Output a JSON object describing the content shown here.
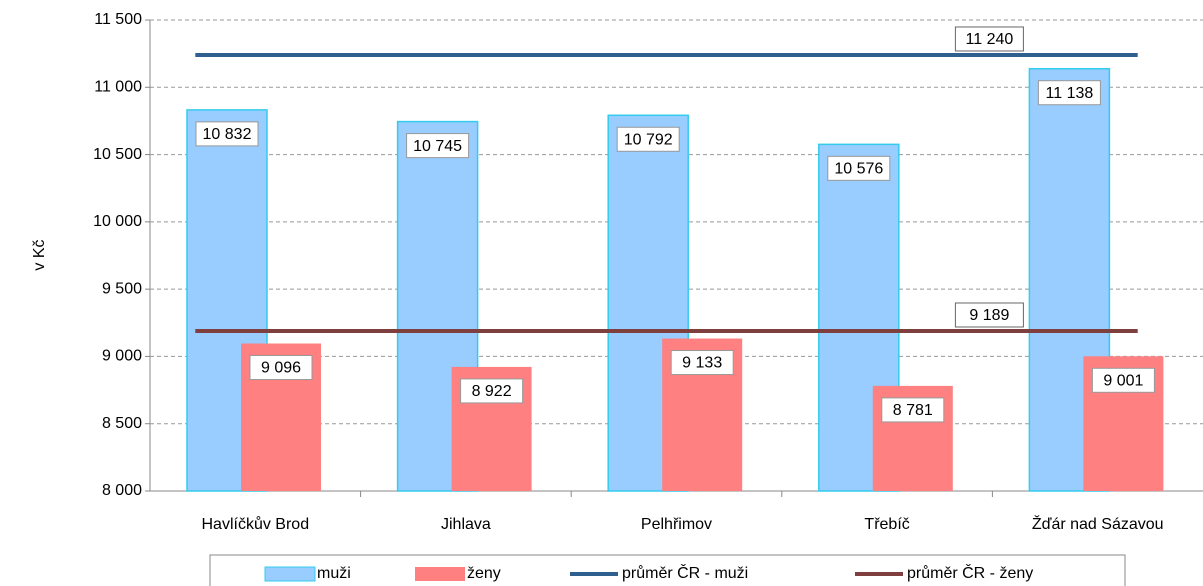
{
  "chart_data": {
    "type": "bar",
    "y_label": "v Kč",
    "categories": [
      "Havlíčkův  Brod",
      "Jihlava",
      "Pelhřimov",
      "Třebíč",
      "Žďár nad Sázavou"
    ],
    "series": [
      {
        "name": "muži",
        "type": "bar",
        "color": "#99ccff",
        "stroke": "#33ccee",
        "values": [
          10832,
          10745,
          10792,
          10576,
          11138
        ],
        "value_labels": [
          "10 832",
          "10 745",
          "10 792",
          "10 576",
          "11 138"
        ]
      },
      {
        "name": "ženy",
        "type": "bar",
        "color": "#ff8080",
        "values": [
          9096,
          8922,
          9133,
          8781,
          9001
        ],
        "value_labels": [
          "9 096",
          "8 922",
          "9 133",
          "8 781",
          "9 001"
        ]
      },
      {
        "name": "průměr ČR - muži",
        "type": "line",
        "color": "#2f5f8f",
        "values": [
          11240,
          11240,
          11240,
          11240,
          11240
        ],
        "value_labels": [
          null,
          null,
          null,
          "11 240",
          null
        ]
      },
      {
        "name": "průměr ČR - ženy",
        "type": "line",
        "color": "#7f3f3f",
        "values": [
          9189,
          9189,
          9189,
          9189,
          9189
        ],
        "value_labels": [
          null,
          null,
          null,
          "9 189",
          null
        ]
      }
    ],
    "ylim": [
      8000,
      11500
    ],
    "yticks": [
      {
        "value": 8000,
        "label": "8 000"
      },
      {
        "value": 8500,
        "label": "8 500"
      },
      {
        "value": 9000,
        "label": "9 000"
      },
      {
        "value": 9500,
        "label": "9 500"
      },
      {
        "value": 10000,
        "label": "10 000"
      },
      {
        "value": 10500,
        "label": "10 500"
      },
      {
        "value": 11000,
        "label": "11 000"
      },
      {
        "value": 11500,
        "label": "11 500"
      }
    ],
    "grid": true,
    "legend": "bottom"
  }
}
